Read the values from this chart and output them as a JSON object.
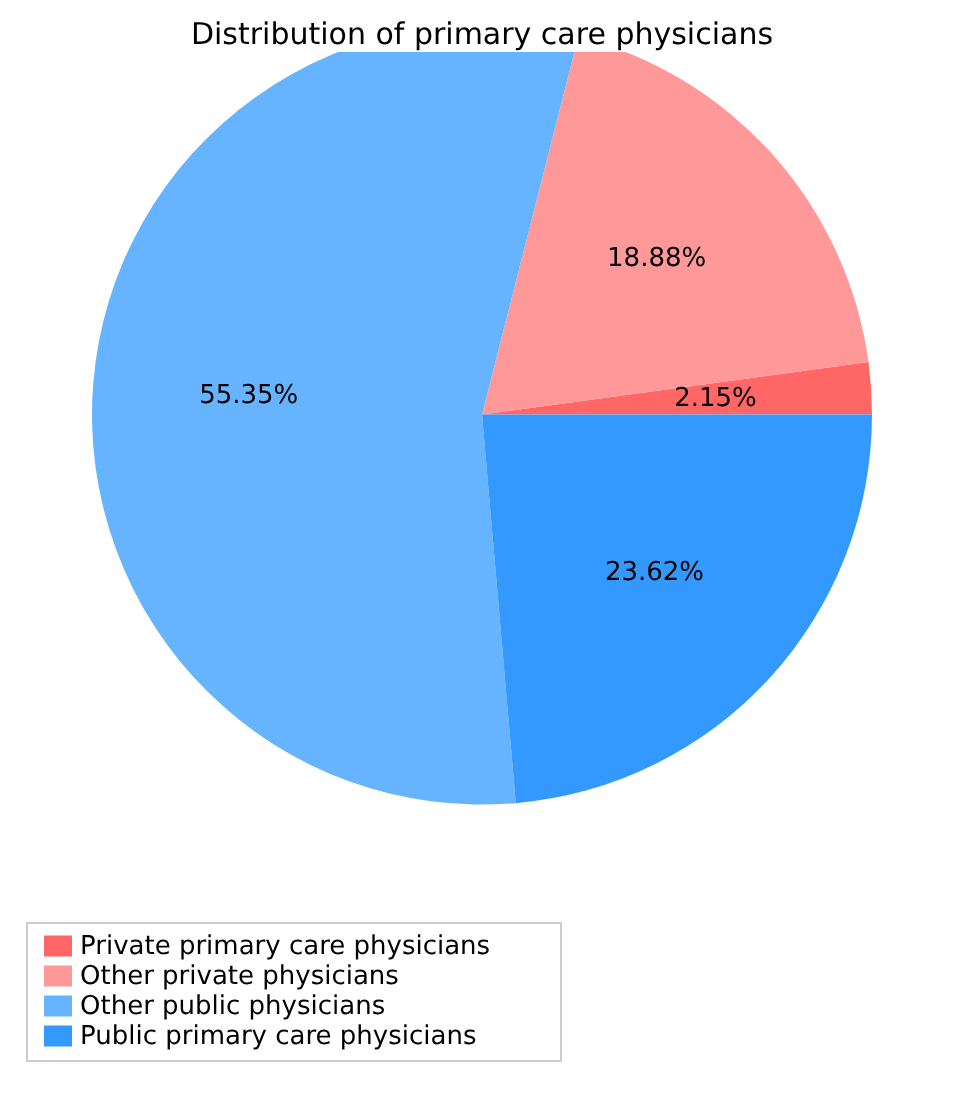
{
  "chart_data": {
    "type": "pie",
    "title": "Distribution of primary care physicians",
    "categories": [
      "Private primary care physicians",
      "Other private physicians",
      "Other public physicians",
      "Public primary care physicians"
    ],
    "values": [
      2.15,
      18.88,
      55.35,
      23.62
    ],
    "value_labels": [
      "2.15%",
      "18.88%",
      "55.35%",
      "23.62%"
    ],
    "colors": [
      "#ff6666",
      "#ff9999",
      "#66b3ff",
      "#3399ff"
    ],
    "legend": "bottom left"
  }
}
